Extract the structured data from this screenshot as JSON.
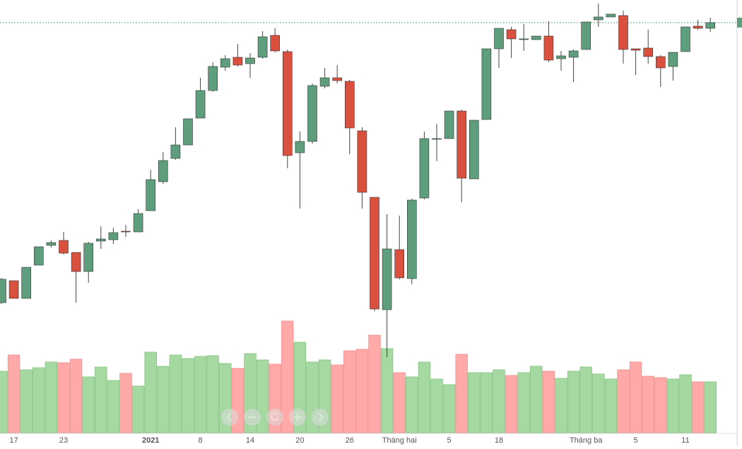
{
  "chart_data": {
    "type": "candlestick",
    "categories": [
      null,
      "17",
      null,
      null,
      null,
      "23",
      null,
      null,
      null,
      null,
      null,
      null,
      "2021",
      null,
      null,
      null,
      "8",
      null,
      null,
      null,
      "14",
      null,
      null,
      null,
      "20",
      null,
      null,
      null,
      "26",
      null,
      null,
      null,
      "Tháng hai",
      null,
      null,
      null,
      "5",
      null,
      null,
      null,
      "18",
      null,
      null,
      null,
      null,
      null,
      null,
      "Tháng ba",
      null,
      null,
      null,
      "5",
      null,
      null,
      null,
      "11",
      null,
      null
    ],
    "bold_categories": [
      "2021"
    ],
    "open": [
      1028.8,
      1041.2,
      1031.2,
      1050,
      1061.2,
      1064,
      1057.2,
      1046.4,
      1063.6,
      1064.4,
      1069.2,
      1068.8,
      1080.8,
      1097.2,
      1110.4,
      1118,
      1133.2,
      1148.8,
      1162,
      1167.6,
      1164,
      1167.6,
      1180,
      1170.8,
      1113.6,
      1120,
      1151.2,
      1156,
      1154,
      1126,
      1088.4,
      1024.8,
      1058.8,
      1042.4,
      1088,
      1121.2,
      1121.6,
      1137.2,
      1098.8,
      1132.4,
      1172.4,
      1183.2,
      1177.6,
      1177.6,
      1179.6,
      1166.8,
      1167.6,
      1172,
      1188.8,
      1190.4,
      1191.2,
      1172.4,
      1172.8,
      1168,
      1162.4,
      1170.8,
      1185.2,
      1184
    ],
    "high": [
      1042.8,
      1041.2,
      1048.8,
      1060.4,
      1064,
      1068.8,
      1057.2,
      1063.2,
      1072,
      1071.2,
      1072.8,
      1081.6,
      1104,
      1114,
      1128,
      1132.8,
      1156,
      1164.8,
      1168.8,
      1175.2,
      1170,
      1182.4,
      1184,
      1172,
      1125.6,
      1152.8,
      1161.6,
      1163.2,
      1154.8,
      1128,
      1088.4,
      1078.8,
      1078,
      1087.6,
      1125.6,
      1130,
      1137.2,
      1138,
      1132,
      1172.4,
      1184,
      1184.8,
      1186.4,
      1179.6,
      1188,
      1171.2,
      1172,
      1187.6,
      1198,
      1192,
      1194,
      1172.4,
      1183.2,
      1168.8,
      1170.4,
      1184.8,
      1188.8,
      1190
    ],
    "low": [
      1028,
      1031.2,
      1031.2,
      1050,
      1060,
      1056,
      1028.8,
      1040,
      1059.2,
      1062,
      1066,
      1068.8,
      1080.8,
      1096,
      1109.6,
      1118,
      1133.2,
      1148,
      1160,
      1162.4,
      1156,
      1166.8,
      1170.4,
      1104.8,
      1082,
      1118.8,
      1150,
      1152.8,
      1112.8,
      1082,
      1024,
      998,
      1042,
      1039.2,
      1087.2,
      1108.8,
      1121.6,
      1085.6,
      1098.8,
      1132.4,
      1161.6,
      1167.2,
      1171.2,
      1177.6,
      1164.8,
      1160,
      1153.6,
      1172,
      1184.8,
      1190.4,
      1164,
      1157.6,
      1164,
      1150.8,
      1154.4,
      1170.8,
      1183.2,
      1182
    ],
    "close": [
      1042,
      1031.2,
      1048.8,
      1060.4,
      1062.8,
      1056.8,
      1046.4,
      1062.4,
      1064.8,
      1068.4,
      1068.8,
      1079.2,
      1098.4,
      1109.2,
      1118,
      1132.8,
      1148.8,
      1162.4,
      1166.8,
      1163.2,
      1167.2,
      1179.2,
      1171.2,
      1112,
      1120,
      1151.6,
      1156,
      1154.4,
      1127.6,
      1091.2,
      1025.2,
      1059.2,
      1042.8,
      1086.8,
      1121.6,
      1121.6,
      1137.2,
      1099.2,
      1132,
      1172.4,
      1184,
      1178,
      1178,
      1179.6,
      1166,
      1168.4,
      1171.2,
      1187.6,
      1190.4,
      1192,
      1172,
      1171.6,
      1168,
      1161.6,
      1170.4,
      1184.8,
      1184,
      1187.2
    ],
    "volume": [
      87,
      110,
      89,
      92,
      100,
      99,
      104,
      79,
      93,
      74,
      84,
      66,
      114,
      94,
      110,
      105,
      108,
      109,
      98,
      91,
      112,
      103,
      97,
      158,
      128,
      100,
      103,
      96,
      116,
      118,
      138,
      119,
      85,
      79,
      100,
      76,
      68,
      111,
      85,
      85,
      89,
      81,
      85,
      94,
      87,
      77,
      87,
      93,
      83,
      76,
      89,
      100,
      80,
      78,
      76,
      82,
      72,
      72
    ],
    "ylim": [
      955.2,
      1200
    ],
    "vlim": [
      0,
      170
    ],
    "up_color": "#5e9e7c",
    "down_color": "#d9503f",
    "volume_up_color": "#a6d8a1",
    "volume_down_color": "#ffa9a9",
    "last_price_line": true
  }
}
